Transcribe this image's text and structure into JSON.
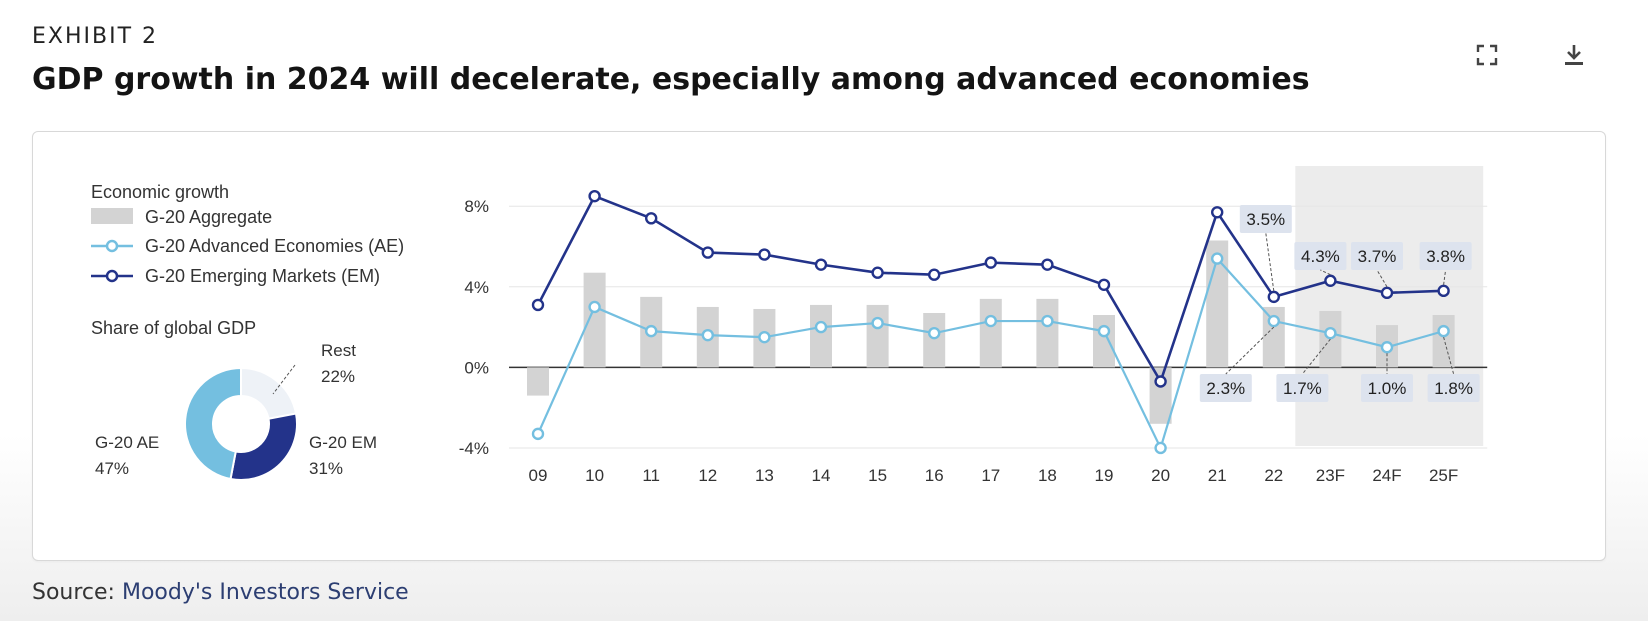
{
  "header": {
    "exhibit": "EXHIBIT 2",
    "title": "GDP growth in 2024 will decelerate, especially among advanced economies"
  },
  "toolbar": {
    "expand_icon": "expand-icon",
    "download_icon": "download-icon"
  },
  "source": {
    "label": "Source:",
    "link_text": "Moody's Investors Service"
  },
  "colors": {
    "aggregate": "#d3d3d3",
    "ae": "#74bfe0",
    "em": "#23338a",
    "forecast_band": "#ececec",
    "label_box": "#dde3ee"
  },
  "legend": {
    "title": "Economic growth",
    "items": [
      {
        "label": "G-20 Aggregate",
        "type": "bar"
      },
      {
        "label": "G-20 Advanced Economies (AE)",
        "type": "line-ae"
      },
      {
        "label": "G-20 Emerging Markets (EM)",
        "type": "line-em"
      }
    ]
  },
  "chart_data": [
    {
      "type": "bar",
      "overlay": "line",
      "categories": [
        "09",
        "10",
        "11",
        "12",
        "13",
        "14",
        "15",
        "16",
        "17",
        "18",
        "19",
        "20",
        "21",
        "22",
        "23F",
        "24F",
        "25F"
      ],
      "series": [
        {
          "name": "G-20 Aggregate",
          "type": "bar",
          "values": [
            -1.4,
            4.7,
            3.5,
            3.0,
            2.9,
            3.1,
            3.1,
            2.7,
            3.4,
            3.4,
            2.6,
            -2.8,
            6.3,
            3.0,
            2.8,
            2.1,
            2.6
          ]
        },
        {
          "name": "G-20 Advanced Economies (AE)",
          "type": "line",
          "values": [
            -3.3,
            3.0,
            1.8,
            1.6,
            1.5,
            2.0,
            2.2,
            1.7,
            2.3,
            2.3,
            1.8,
            -4.0,
            5.4,
            2.3,
            1.7,
            1.0,
            1.8
          ]
        },
        {
          "name": "G-20 Emerging Markets (EM)",
          "type": "line",
          "values": [
            3.1,
            8.5,
            7.4,
            5.7,
            5.6,
            5.1,
            4.7,
            4.6,
            5.2,
            5.1,
            4.1,
            -0.7,
            7.7,
            3.5,
            4.3,
            3.7,
            3.8
          ]
        }
      ],
      "y_ticks": [
        "8%",
        "4%",
        "0%",
        "-4%"
      ],
      "ylim": [
        -4.2,
        9.5
      ],
      "forecast_start": "23F",
      "annotations": {
        "em": [
          {
            "category": "22",
            "text": "3.5%"
          },
          {
            "category": "23F",
            "text": "4.3%"
          },
          {
            "category": "24F",
            "text": "3.7%"
          },
          {
            "category": "25F",
            "text": "3.8%"
          }
        ],
        "ae": [
          {
            "category": "22",
            "text": "2.3%"
          },
          {
            "category": "23F",
            "text": "1.7%"
          },
          {
            "category": "24F",
            "text": "1.0%"
          },
          {
            "category": "25F",
            "text": "1.8%"
          }
        ]
      },
      "grid": true
    },
    {
      "type": "pie",
      "title": "Share of global GDP",
      "slices": [
        {
          "label": "Rest",
          "value": 22,
          "display": "22%"
        },
        {
          "label": "G-20 EM",
          "value": 31,
          "display": "31%"
        },
        {
          "label": "G-20 AE",
          "value": 47,
          "display": "47%"
        }
      ]
    }
  ]
}
